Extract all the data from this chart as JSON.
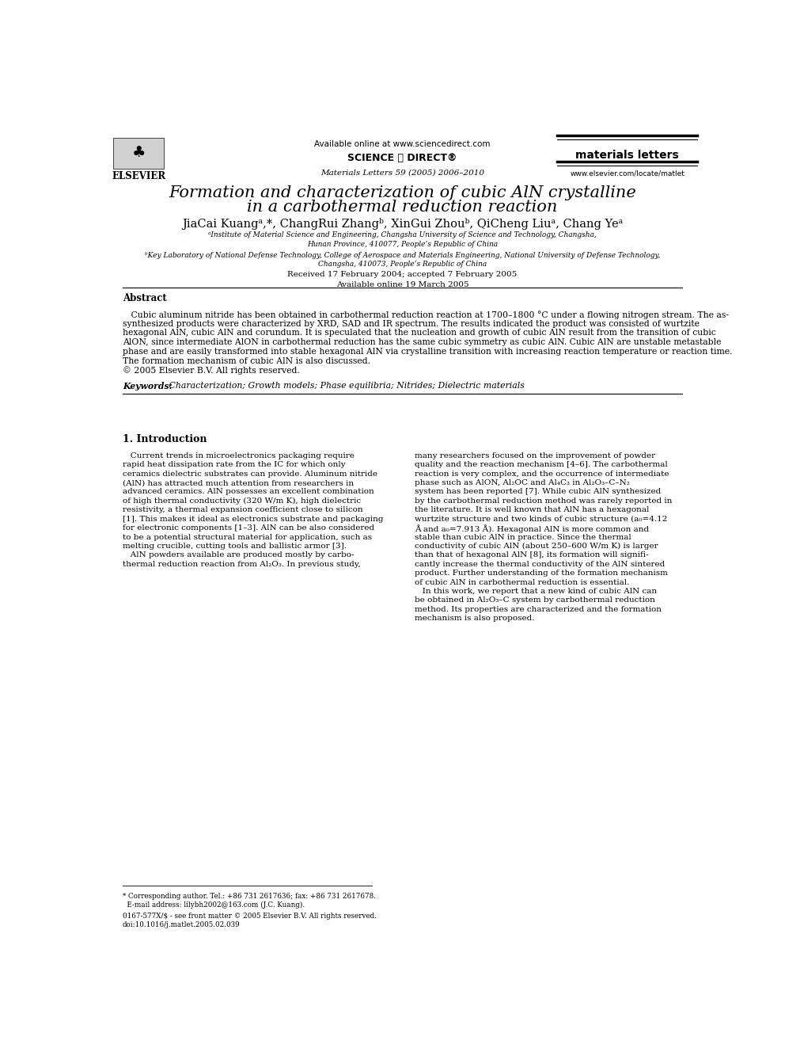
{
  "bg_color": "#ffffff",
  "title_line1": "Formation and characterization of cubic AlN crystalline",
  "title_line2": "in a carbothermal reduction reaction",
  "authors": "JiaCai Kuangᵃ,*, ChangRui Zhangᵇ, XinGui Zhouᵇ, QiCheng Liuᵃ, Chang Yeᵃ",
  "affil_a1": "ᵃInstitute of Material Science and Engineering, Changsha University of Science and Technology, Changsha,",
  "affil_a2": "Hunan Province, 410077, People’s Republic of China",
  "affil_b1": "ᵇKey Laboratory of National Defense Technology, College of Aerospace and Materials Engineering, National University of Defense Technology,",
  "affil_b2": "Changsha, 410073, People’s Republic of China",
  "date1": "Received 17 February 2004; accepted 7 February 2005",
  "date2": "Available online 19 March 2005",
  "journal_top": "Available online at www.sciencedirect.com",
  "journal_name": "materials letters",
  "journal_ref": "Materials Letters 59 (2005) 2006–2010",
  "journal_url": "www.elsevier.com/locate/matlet",
  "sciencedirect": "SCIENCE ⓐ DIRECT®",
  "abstract_title": "Abstract",
  "abs_lines": [
    "   Cubic aluminum nitride has been obtained in carbothermal reduction reaction at 1700–1800 °C under a flowing nitrogen stream. The as-",
    "synthesized products were characterized by XRD, SAD and IR spectrum. The results indicated the product was consisted of wurtzite",
    "hexagonal AlN, cubic AlN and corundum. It is speculated that the nucleation and growth of cubic AlN result from the transition of cubic",
    "AlON, since intermediate AlON in carbothermal reduction has the same cubic symmetry as cubic AlN. Cubic AlN are unstable metastable",
    "phase and are easily transformed into stable hexagonal AlN via crystalline transition with increasing reaction temperature or reaction time.",
    "The formation mechanism of cubic AlN is also discussed.",
    "© 2005 Elsevier B.V. All rights reserved."
  ],
  "keywords_label": "Keywords:",
  "keywords_text": " Characterization; Growth models; Phase equilibria; Nitrides; Dielectric materials",
  "section1_title": "1. Introduction",
  "col1_lines": [
    "   Current trends in microelectronics packaging require",
    "rapid heat dissipation rate from the IC for which only",
    "ceramics dielectric substrates can provide. Aluminum nitride",
    "(AlN) has attracted much attention from researchers in",
    "advanced ceramics. AlN possesses an excellent combination",
    "of high thermal conductivity (320 W/m K), high dielectric",
    "resistivity, a thermal expansion coefficient close to silicon",
    "[1]. This makes it ideal as electronics substrate and packaging",
    "for electronic components [1–3]. AlN can be also considered",
    "to be a potential structural material for application, such as",
    "melting crucible, cutting tools and ballistic armor [3].",
    "   AlN powders available are produced mostly by carbo-",
    "thermal reduction reaction from Al₂O₃. In previous study,"
  ],
  "col2_lines": [
    "many researchers focused on the improvement of powder",
    "quality and the reaction mechanism [4–6]. The carbothermal",
    "reaction is very complex, and the occurrence of intermediate",
    "phase such as AlON, Al₂OC and Al₄C₃ in Al₂O₃–C–N₂",
    "system has been reported [7]. While cubic AlN synthesized",
    "by the carbothermal reduction method was rarely reported in",
    "the literature. It is well known that AlN has a hexagonal",
    "wurtzite structure and two kinds of cubic structure (a₀=4.12",
    "Å and a₀=7.913 Å). Hexagonal AlN is more common and",
    "stable than cubic AlN in practice. Since the thermal",
    "conductivity of cubic AlN (about 250–600 W/m K) is larger",
    "than that of hexagonal AlN [8], its formation will signifi-",
    "cantly increase the thermal conductivity of the AlN sintered",
    "product. Further understanding of the formation mechanism",
    "of cubic AlN in carbothermal reduction is essential.",
    "   In this work, we report that a new kind of cubic AlN can",
    "be obtained in Al₂O₃–C system by carbothermal reduction",
    "method. Its properties are characterized and the formation",
    "mechanism is also proposed."
  ],
  "footnote1a": "* Corresponding author. Tel.: +86 731 2617636; fax: +86 731 2617678.",
  "footnote1b": "  E-mail address: lilybh2002@163.com (J.C. Kuang).",
  "footnote2a": "0167-577X/$ - see front matter © 2005 Elsevier B.V. All rights reserved.",
  "footnote2b": "doi:10.1016/j.matlet.2005.02.039"
}
